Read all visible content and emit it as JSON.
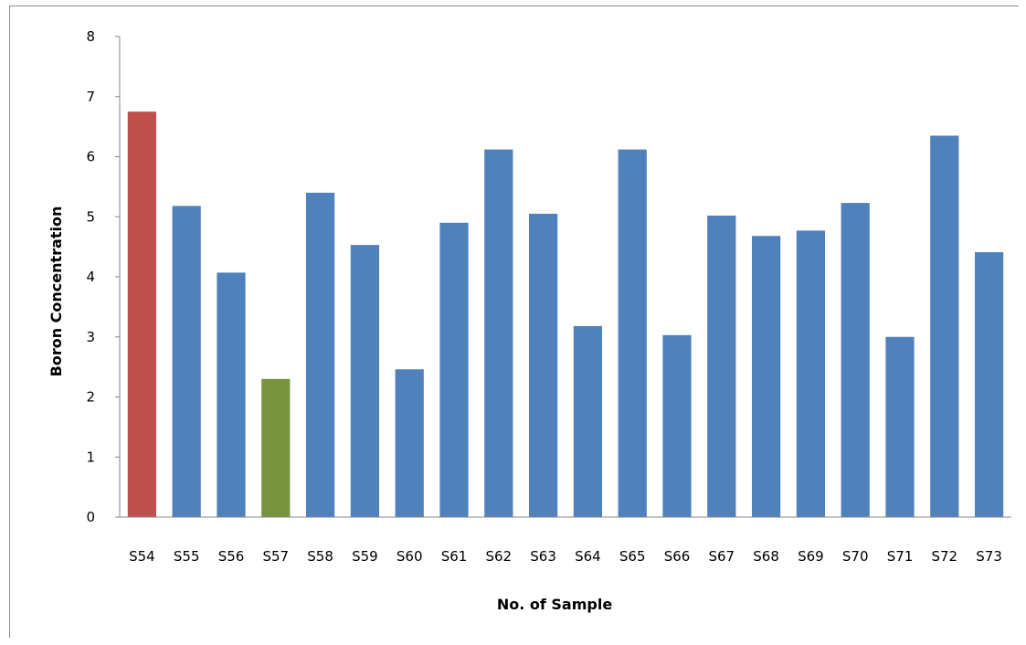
{
  "chart_data": {
    "type": "bar",
    "title": "",
    "xlabel": "No. of Sample",
    "ylabel": "Boron Concentration",
    "ylim": [
      0,
      8
    ],
    "yticks": [
      0,
      1,
      2,
      3,
      4,
      5,
      6,
      7,
      8
    ],
    "grid": false,
    "legend": "none",
    "categories": [
      "S54",
      "S55",
      "S56",
      "S57",
      "S58",
      "S59",
      "S60",
      "S61",
      "S62",
      "S63",
      "S64",
      "S65",
      "S66",
      "S67",
      "S68",
      "S69",
      "S70",
      "S71",
      "S72",
      "S73"
    ],
    "values": [
      6.75,
      5.18,
      4.07,
      2.3,
      5.4,
      4.53,
      2.46,
      4.9,
      6.12,
      5.05,
      3.18,
      6.12,
      3.03,
      5.02,
      4.68,
      4.77,
      5.23,
      3.0,
      6.35,
      4.41
    ],
    "bar_colors": [
      "#c0504d",
      "#4f81bd",
      "#4f81bd",
      "#77933c",
      "#4f81bd",
      "#4f81bd",
      "#4f81bd",
      "#4f81bd",
      "#4f81bd",
      "#4f81bd",
      "#4f81bd",
      "#4f81bd",
      "#4f81bd",
      "#4f81bd",
      "#4f81bd",
      "#4f81bd",
      "#4f81bd",
      "#4f81bd",
      "#4f81bd",
      "#4f81bd"
    ],
    "axis_color": "#868686"
  }
}
